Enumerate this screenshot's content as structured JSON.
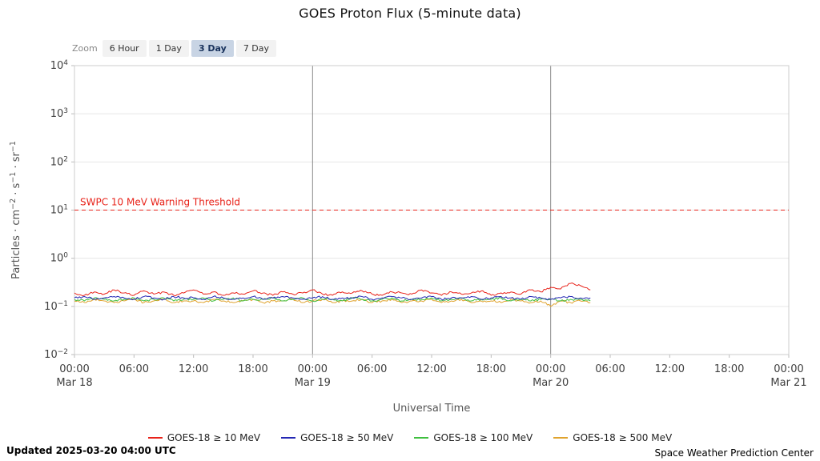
{
  "title": "GOES Proton Flux (5-minute data)",
  "zoom": {
    "label": "Zoom",
    "buttons": [
      {
        "label": "6 Hour",
        "active": false
      },
      {
        "label": "1 Day",
        "active": false
      },
      {
        "label": "3 Day",
        "active": true
      },
      {
        "label": "7 Day",
        "active": false
      }
    ]
  },
  "footer": {
    "updated": "Updated 2025-03-20 04:00 UTC",
    "credit": "Space Weather Prediction Center"
  },
  "chart_data": {
    "type": "line",
    "title": "GOES Proton Flux (5-minute data)",
    "xlabel": "Universal Time",
    "ylabel": "Particles · cm−2 · s−1 · sr−1",
    "ylabel_parts": [
      {
        "text": "Particles · cm"
      },
      {
        "sup": "−2"
      },
      {
        "text": " · s"
      },
      {
        "sup": "−1"
      },
      {
        "text": " · sr"
      },
      {
        "sup": "−1"
      }
    ],
    "x_range_hours": [
      0,
      72
    ],
    "y_range": [
      0.01,
      10000
    ],
    "y_scale": "log",
    "grid": true,
    "legend_position": "bottom",
    "y_tick_exponents": [
      4,
      3,
      2,
      1,
      0,
      -1,
      -2
    ],
    "x_ticks": [
      {
        "hour": 0,
        "time": "00:00",
        "date": "Mar 18"
      },
      {
        "hour": 6,
        "time": "06:00"
      },
      {
        "hour": 12,
        "time": "12:00"
      },
      {
        "hour": 18,
        "time": "18:00"
      },
      {
        "hour": 24,
        "time": "00:00",
        "date": "Mar 19"
      },
      {
        "hour": 30,
        "time": "06:00"
      },
      {
        "hour": 36,
        "time": "12:00"
      },
      {
        "hour": 42,
        "time": "18:00"
      },
      {
        "hour": 48,
        "time": "00:00",
        "date": "Mar 20"
      },
      {
        "hour": 54,
        "time": "06:00"
      },
      {
        "hour": 60,
        "time": "12:00"
      },
      {
        "hour": 66,
        "time": "18:00"
      },
      {
        "hour": 72,
        "time": "00:00",
        "date": "Mar 21"
      }
    ],
    "day_line_hours": [
      24,
      48
    ],
    "threshold": {
      "label": "SWPC 10 MeV Warning Threshold",
      "value": 10,
      "color": "#e8231a"
    },
    "x_start_hour": 0,
    "x_step_hours": 1,
    "series": [
      {
        "name": "GOES-18 ≥ 10 MeV",
        "color": "#e8231a",
        "values": [
          0.19,
          0.17,
          0.2,
          0.18,
          0.22,
          0.19,
          0.17,
          0.21,
          0.18,
          0.2,
          0.17,
          0.19,
          0.22,
          0.18,
          0.2,
          0.17,
          0.19,
          0.18,
          0.21,
          0.19,
          0.17,
          0.2,
          0.18,
          0.19,
          0.22,
          0.18,
          0.17,
          0.2,
          0.19,
          0.21,
          0.18,
          0.17,
          0.2,
          0.19,
          0.18,
          0.22,
          0.19,
          0.17,
          0.2,
          0.18,
          0.19,
          0.21,
          0.17,
          0.19,
          0.2,
          0.18,
          0.22,
          0.2,
          0.25,
          0.23,
          0.3,
          0.27,
          0.22
        ]
      },
      {
        "name": "GOES-18 ≥ 50 MeV",
        "color": "#2428b4",
        "values": [
          0.15,
          0.16,
          0.14,
          0.15,
          0.16,
          0.15,
          0.14,
          0.16,
          0.15,
          0.14,
          0.16,
          0.15,
          0.15,
          0.14,
          0.16,
          0.15,
          0.14,
          0.15,
          0.16,
          0.14,
          0.15,
          0.16,
          0.15,
          0.14,
          0.15,
          0.16,
          0.14,
          0.15,
          0.15,
          0.16,
          0.14,
          0.15,
          0.16,
          0.15,
          0.14,
          0.15,
          0.16,
          0.14,
          0.15,
          0.15,
          0.16,
          0.14,
          0.15,
          0.16,
          0.15,
          0.14,
          0.16,
          0.15,
          0.14,
          0.15,
          0.16,
          0.15,
          0.15
        ]
      },
      {
        "name": "GOES-18 ≥ 100 MeV",
        "color": "#3fbf3f",
        "values": [
          0.14,
          0.13,
          0.15,
          0.14,
          0.13,
          0.14,
          0.15,
          0.13,
          0.14,
          0.15,
          0.13,
          0.14,
          0.14,
          0.15,
          0.13,
          0.14,
          0.15,
          0.13,
          0.14,
          0.14,
          0.15,
          0.13,
          0.14,
          0.15,
          0.13,
          0.14,
          0.14,
          0.13,
          0.15,
          0.14,
          0.13,
          0.14,
          0.15,
          0.13,
          0.14,
          0.14,
          0.15,
          0.13,
          0.14,
          0.15,
          0.13,
          0.14,
          0.14,
          0.15,
          0.13,
          0.14,
          0.13,
          0.14,
          0.14,
          0.13,
          0.14,
          0.14,
          0.13
        ]
      },
      {
        "name": "GOES-18 ≥ 500 MeV",
        "color": "#e0a32e",
        "values": [
          0.13,
          0.12,
          0.14,
          0.13,
          0.12,
          0.13,
          0.14,
          0.12,
          0.13,
          0.14,
          0.12,
          0.13,
          0.13,
          0.12,
          0.14,
          0.13,
          0.12,
          0.13,
          0.14,
          0.12,
          0.13,
          0.13,
          0.14,
          0.12,
          0.13,
          0.14,
          0.12,
          0.13,
          0.13,
          0.14,
          0.12,
          0.13,
          0.14,
          0.12,
          0.13,
          0.13,
          0.14,
          0.12,
          0.13,
          0.14,
          0.12,
          0.13,
          0.13,
          0.12,
          0.14,
          0.13,
          0.12,
          0.13,
          0.1,
          0.13,
          0.12,
          0.13,
          0.12
        ]
      }
    ]
  }
}
